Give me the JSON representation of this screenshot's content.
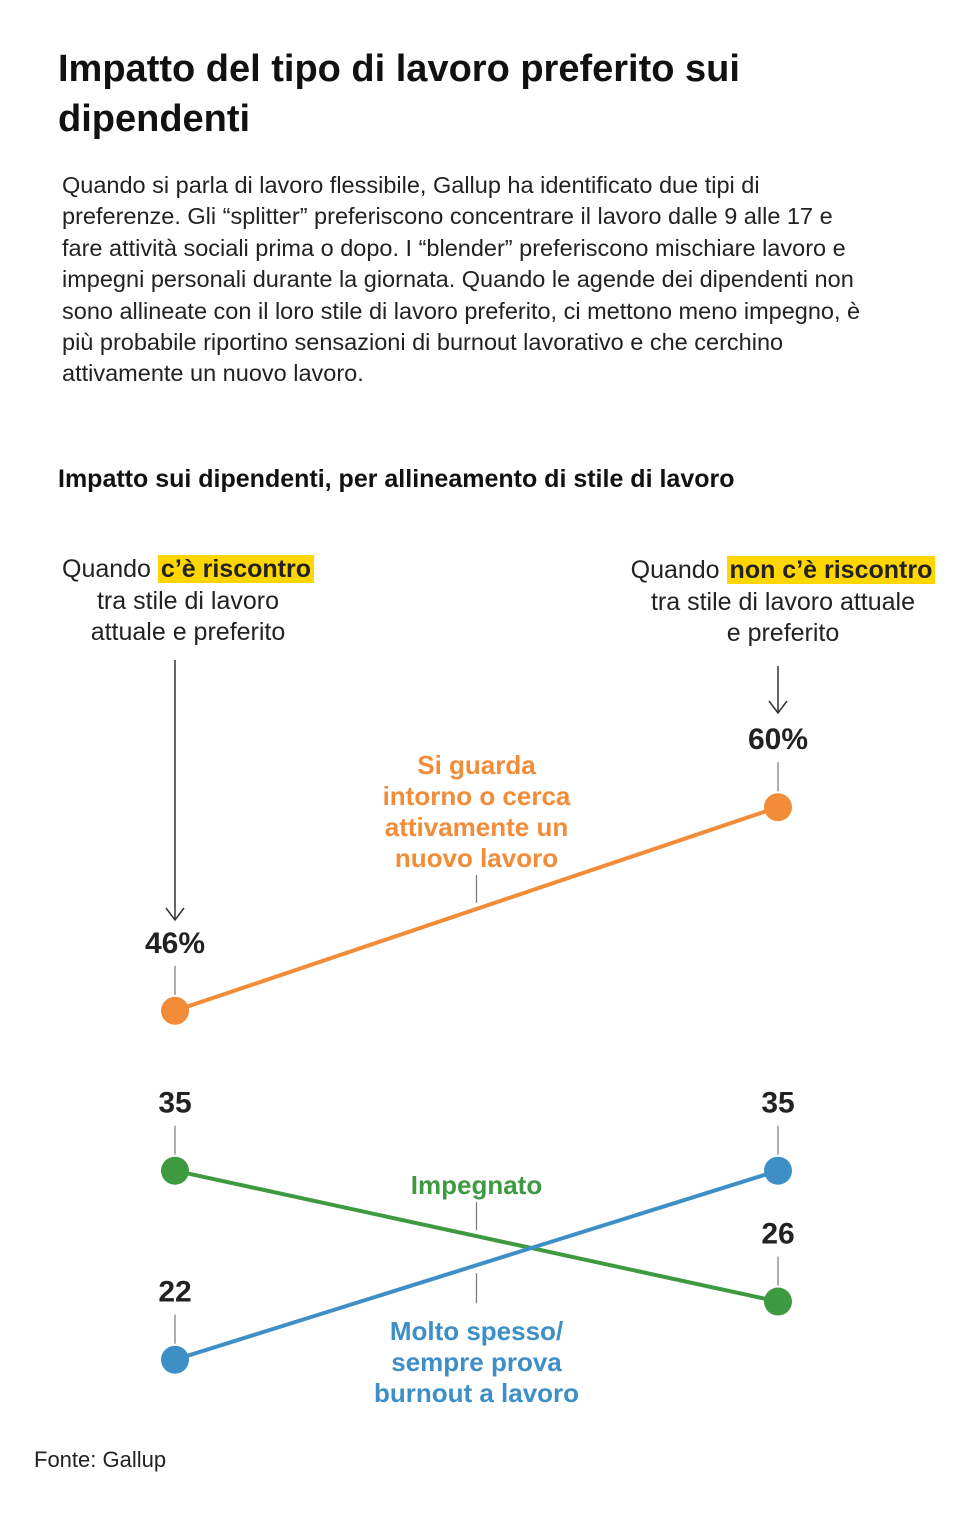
{
  "title": "Impatto del tipo di lavoro preferito sui dipendenti",
  "intro": "Quando si parla di lavoro flessibile, Gallup ha identificato due tipi di preferenze. Gli “splitter” preferiscono concentrare il lavoro dalle 9 alle 17 e fare attività sociali prima o dopo. I “blender” preferiscono mischiare lavoro e impegni personali durante la giornata. Quando le agende dei dipendenti non sono allineate con il loro stile di lavoro preferito, ci mettono meno impegno, è più probabile riportino sensazioni di burnout lavorativo e che cerchino attivamente un nuovo lavoro.",
  "source": "Fonte: Gallup",
  "conditions": {
    "match": {
      "pre": "Quando",
      "highlight": "c’è riscontro",
      "l2": "tra stile di lavoro",
      "l3": "attuale e preferito"
    },
    "mismatch": {
      "pre": "Quando",
      "highlight": "non c’è riscontro",
      "l2": "tra stile di lavoro attuale",
      "l3": "e preferito"
    }
  },
  "chart_data": {
    "type": "line",
    "title": "Impatto sui dipendenti, per allineamento di stile di lavoro",
    "x": [
      "c’è riscontro",
      "non c’è riscontro"
    ],
    "series": [
      {
        "name": "Si guarda intorno o cerca attivamente un nuovo lavoro",
        "name_lines": [
          "Si guarda",
          "intorno o cerca",
          "attivamente un",
          "nuovo lavoro"
        ],
        "values": [
          46,
          60
        ],
        "value_labels": [
          "46%",
          "60%"
        ],
        "color": "#f28c38"
      },
      {
        "name": "Impegnato",
        "name_lines": [
          "Impegnato"
        ],
        "values": [
          35,
          26
        ],
        "value_labels": [
          "35",
          "26"
        ],
        "color": "#3e9a41"
      },
      {
        "name": "Molto spesso/ sempre prova burnout a lavoro",
        "name_lines": [
          "Molto spesso/",
          "sempre prova",
          "burnout a lavoro"
        ],
        "values": [
          22,
          35
        ],
        "value_labels": [
          "22",
          "35"
        ],
        "color": "#3f8fc7"
      }
    ]
  }
}
